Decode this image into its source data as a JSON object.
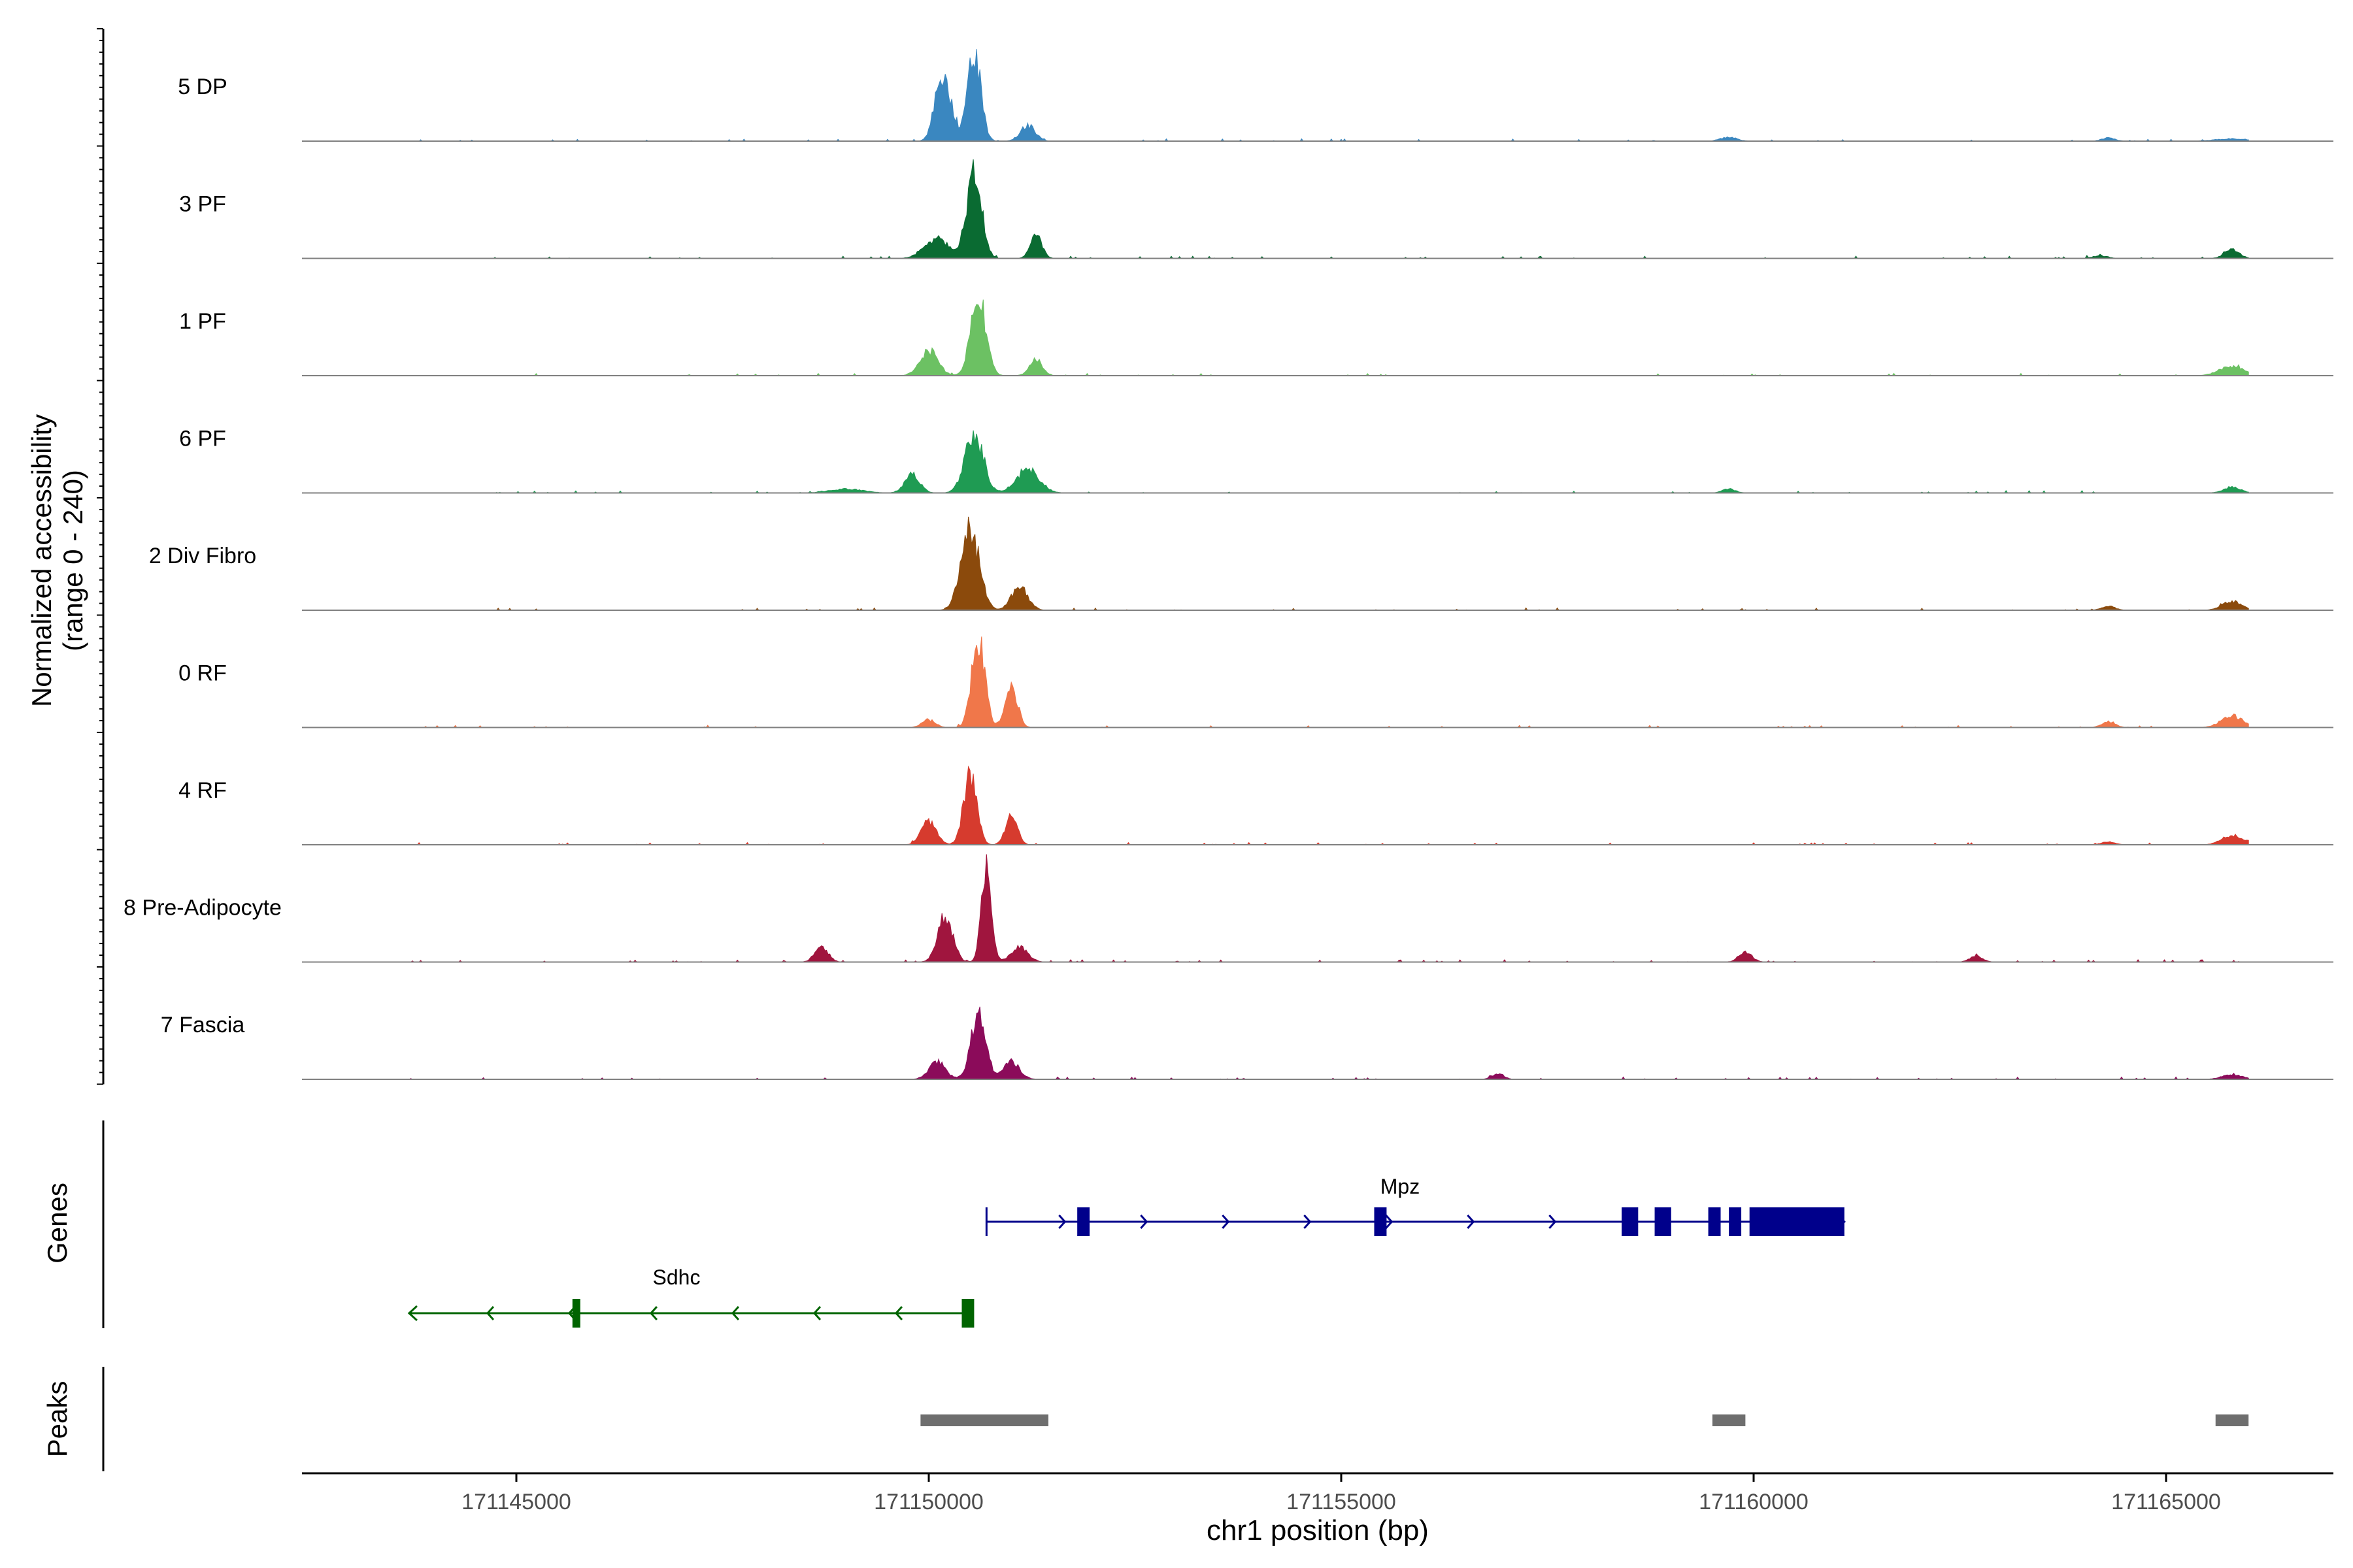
{
  "chart_data": {
    "type": "area",
    "title": "",
    "ylabel_line1": "Normalized accessibility",
    "ylabel_line2": "(range 0 - 240)",
    "xlabel": "chr1 position (bp)",
    "genes_label": "Genes",
    "peaks_label": "Peaks",
    "xlim": [
      171142500,
      171167300
    ],
    "xticks": [
      171145000,
      171150000,
      171155000,
      171160000,
      171165000
    ],
    "xtick_labels": [
      "171145000",
      "171150000",
      "171155000",
      "171160000",
      "171165000"
    ],
    "ylim": [
      0,
      240
    ],
    "tracks": [
      {
        "name": "5 DP",
        "color": "#3a87c0",
        "peaks": [
          [
            171150200,
            140,
            90
          ],
          [
            171150550,
            230,
            80
          ],
          [
            171151200,
            40,
            90
          ],
          [
            171150100,
            50,
            70
          ],
          [
            171159700,
            10,
            100
          ],
          [
            171164300,
            8,
            80
          ],
          [
            171165800,
            6,
            200
          ]
        ]
      },
      {
        "name": "3 PF",
        "color": "#0a6b32",
        "peaks": [
          [
            171150550,
            220,
            90
          ],
          [
            171151300,
            60,
            70
          ],
          [
            171150100,
            50,
            150
          ],
          [
            171165800,
            22,
            90
          ],
          [
            171164200,
            7,
            90
          ]
        ]
      },
      {
        "name": "1 PF",
        "color": "#6cc163",
        "peaks": [
          [
            171150600,
            210,
            90
          ],
          [
            171150000,
            65,
            110
          ],
          [
            171151300,
            40,
            80
          ],
          [
            171165800,
            25,
            150
          ]
        ]
      },
      {
        "name": "6 PF",
        "color": "#1f9b53",
        "peaks": [
          [
            171150550,
            150,
            110
          ],
          [
            171149800,
            50,
            90
          ],
          [
            171151200,
            60,
            140
          ],
          [
            171149000,
            10,
            200
          ],
          [
            171165800,
            15,
            100
          ],
          [
            171159700,
            10,
            80
          ]
        ]
      },
      {
        "name": "2 Div Fibro",
        "color": "#8b4a0c",
        "peaks": [
          [
            171150500,
            210,
            110
          ],
          [
            171151100,
            60,
            100
          ],
          [
            171165800,
            22,
            120
          ],
          [
            171164300,
            10,
            80
          ]
        ]
      },
      {
        "name": "0 RF",
        "color": "#f0774a",
        "peaks": [
          [
            171150600,
            230,
            80
          ],
          [
            171151000,
            110,
            75
          ],
          [
            171150000,
            20,
            80
          ],
          [
            171164300,
            15,
            80
          ],
          [
            171165800,
            30,
            130
          ]
        ]
      },
      {
        "name": "4 RF",
        "color": "#d63b2e",
        "peaks": [
          [
            171150500,
            175,
            80
          ],
          [
            171150000,
            60,
            90
          ],
          [
            171151000,
            80,
            70
          ],
          [
            171165800,
            25,
            120
          ],
          [
            171164300,
            8,
            80
          ]
        ]
      },
      {
        "name": "8 Pre-Adipocyte",
        "color": "#a0153e",
        "peaks": [
          [
            171150700,
            260,
            60
          ],
          [
            171150200,
            120,
            90
          ],
          [
            171151100,
            40,
            100
          ],
          [
            171148700,
            40,
            80
          ],
          [
            171159900,
            25,
            80
          ],
          [
            171162700,
            15,
            80
          ]
        ]
      },
      {
        "name": "7 Fascia",
        "color": "#8b0b5a",
        "peaks": [
          [
            171150600,
            170,
            90
          ],
          [
            171150100,
            45,
            100
          ],
          [
            171151000,
            45,
            100
          ],
          [
            171156900,
            15,
            70
          ],
          [
            171165800,
            12,
            120
          ]
        ]
      }
    ],
    "genes": [
      {
        "name": "Mpz",
        "strand": "+",
        "color": "#00008b",
        "start": 171150700,
        "end": 171161100,
        "exons": [
          [
            171151800,
            171151950
          ],
          [
            171155400,
            171155550
          ],
          [
            171158400,
            171158600
          ],
          [
            171158800,
            171159000
          ],
          [
            171159450,
            171159600
          ],
          [
            171159700,
            171159850
          ],
          [
            171159950,
            171161100
          ]
        ],
        "tss_tick": 171150700
      },
      {
        "name": "Sdhc",
        "strand": "-",
        "color": "#006400",
        "start": 171143700,
        "end": 171150500,
        "exons": [
          [
            171150400,
            171150550
          ],
          [
            171145680,
            171145740
          ]
        ],
        "tss_tick": 171145700
      }
    ],
    "peaks": [
      [
        171149900,
        171151450
      ],
      [
        171159500,
        171159900
      ],
      [
        171165600,
        171166000
      ]
    ]
  }
}
